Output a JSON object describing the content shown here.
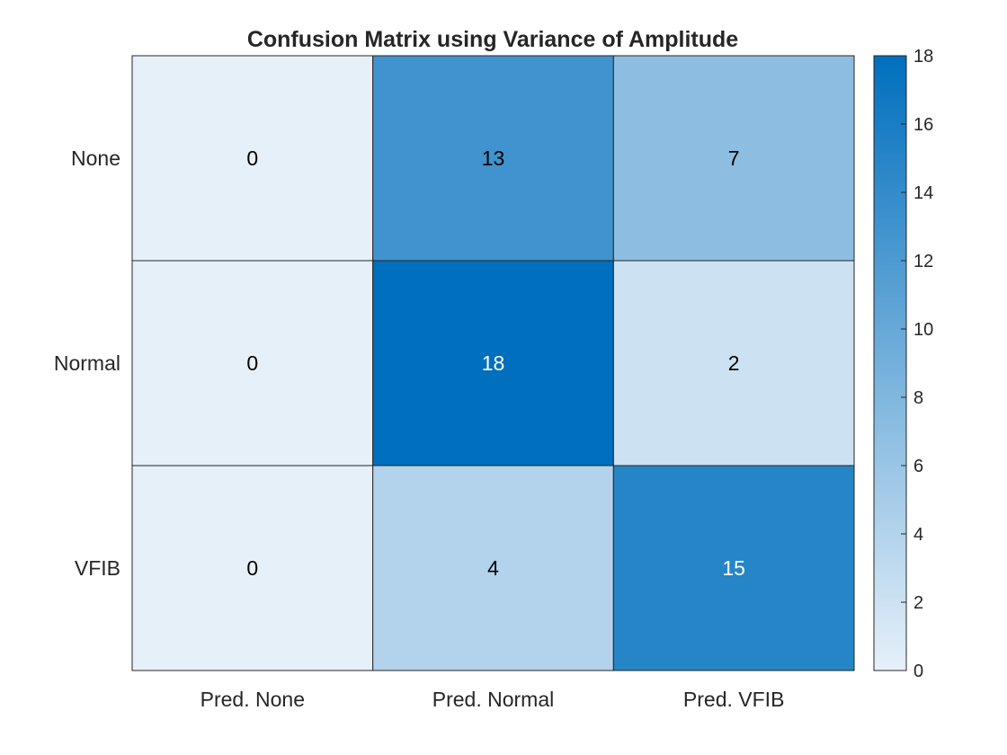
{
  "chart_data": {
    "type": "heatmap",
    "title": "Confusion Matrix using Variance of Amplitude",
    "row_labels": [
      "None",
      "Normal",
      "VFIB"
    ],
    "col_labels": [
      "Pred. None",
      "Pred. Normal",
      "Pred. VFIB"
    ],
    "values": [
      [
        0,
        13,
        7
      ],
      [
        0,
        18,
        2
      ],
      [
        0,
        4,
        15
      ]
    ],
    "colorbar": {
      "range": [
        0,
        18
      ],
      "ticks": [
        0,
        2,
        4,
        6,
        8,
        10,
        12,
        14,
        16,
        18
      ]
    },
    "colormap": {
      "low": "#e6f0f9",
      "high": "#006fbd"
    },
    "text_colors": {
      "dark": "#000000",
      "light": "#ffffff"
    }
  }
}
